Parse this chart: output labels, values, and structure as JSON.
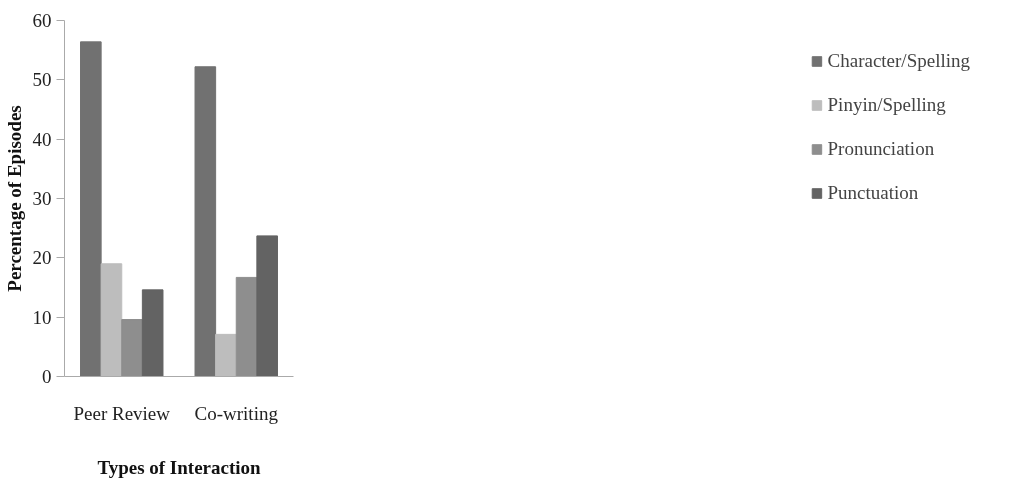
{
  "chart_data": {
    "type": "bar",
    "xlabel": "Types of Interaction",
    "ylabel": "Percentage of Episodes",
    "categories": [
      "Peer Review",
      "Co-writing"
    ],
    "series": [
      {
        "name": "Character/Spelling",
        "color": "#717171",
        "values": [
          56.4,
          52.2
        ]
      },
      {
        "name": "Pinyin/Spelling",
        "color": "#bdbdbd",
        "values": [
          19.0,
          7.1
        ]
      },
      {
        "name": "Pronunciation",
        "color": "#8e8e8e",
        "values": [
          9.6,
          16.7
        ]
      },
      {
        "name": "Punctuation",
        "color": "#636363",
        "values": [
          14.6,
          23.7
        ]
      }
    ],
    "ylim": [
      0,
      60
    ],
    "yticks": [
      0,
      10,
      20,
      30,
      40,
      50,
      60
    ],
    "grid": false,
    "legend": "right"
  }
}
